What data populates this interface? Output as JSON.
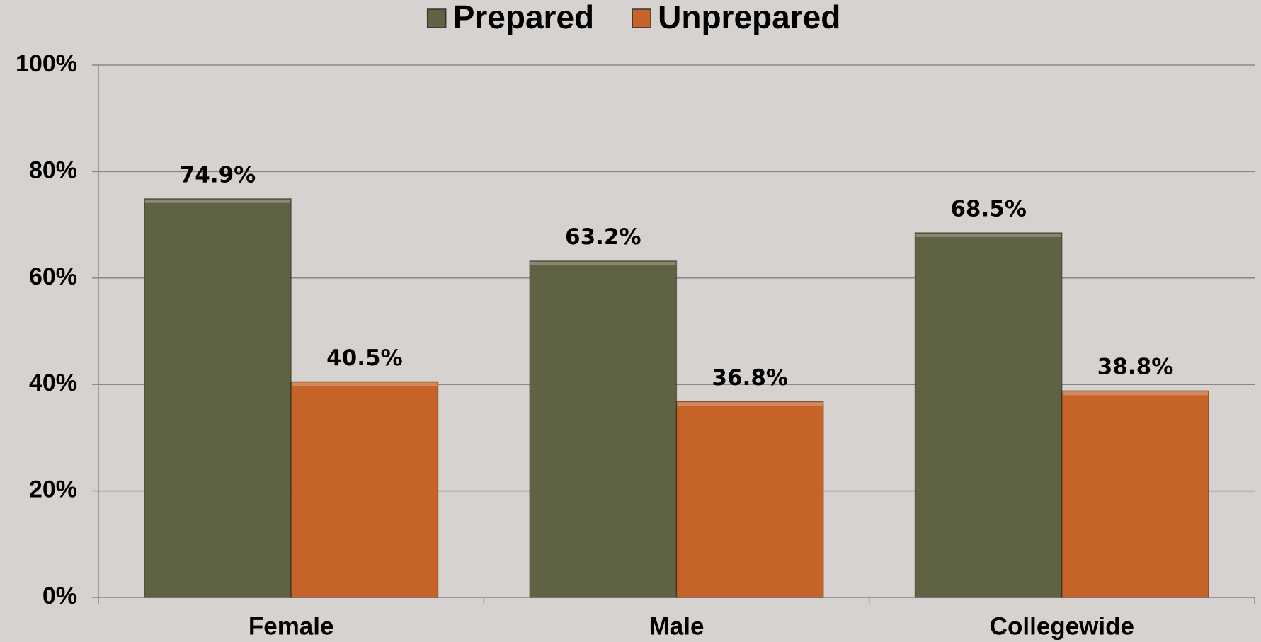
{
  "chart_data": {
    "type": "bar",
    "categories": [
      "Female",
      "Male",
      "Collegewide"
    ],
    "series": [
      {
        "name": "Prepared",
        "color": "#5f6343",
        "values": [
          74.9,
          63.2,
          68.5
        ],
        "value_labels": [
          "74.9%",
          "63.2%",
          "68.5%"
        ]
      },
      {
        "name": "Unprepared",
        "color": "#c56328",
        "values": [
          40.5,
          36.8,
          38.8
        ],
        "value_labels": [
          "40.5%",
          "36.8%",
          "38.8%"
        ]
      }
    ],
    "ylim": [
      0,
      100
    ],
    "yticks": [
      {
        "value": 0,
        "label": "0%"
      },
      {
        "value": 20,
        "label": "20%"
      },
      {
        "value": 40,
        "label": "40%"
      },
      {
        "value": 60,
        "label": "60%"
      },
      {
        "value": 80,
        "label": "80%"
      },
      {
        "value": 100,
        "label": "100%"
      }
    ],
    "grid": true,
    "legend": "top"
  }
}
